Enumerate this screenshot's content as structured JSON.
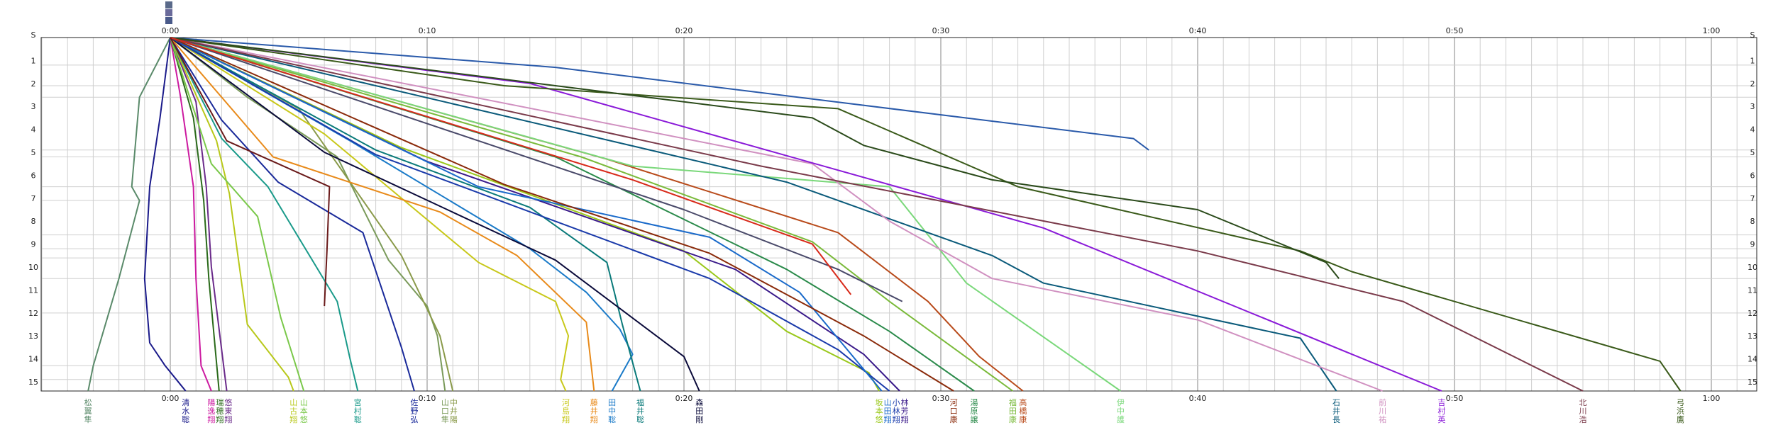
{
  "chart_data": {
    "type": "line",
    "title": "",
    "xlabel": "",
    "ylabel": "",
    "x_unit": "minutes",
    "xlim": [
      0,
      60
    ],
    "x_ticks": [
      {
        "value": 0,
        "label": "0:00"
      },
      {
        "value": 10,
        "label": "0:10"
      },
      {
        "value": 20,
        "label": "0:20"
      },
      {
        "value": 30,
        "label": "0:30"
      },
      {
        "value": 40,
        "label": "0:40"
      },
      {
        "value": 50,
        "label": "0:50"
      },
      {
        "value": 60,
        "label": "1:00"
      }
    ],
    "y_start_label": "S",
    "y_ticks": [
      1,
      2,
      3,
      4,
      5,
      6,
      7,
      8,
      9,
      10,
      11,
      12,
      13,
      14,
      15
    ],
    "y_marks": [
      0,
      1.2,
      2.1,
      2.6,
      4.9,
      5.2,
      6.5,
      7.1,
      8.6,
      9.2,
      9.6,
      10.5,
      12.0,
      14.3,
      14.9,
      15.4
    ],
    "legend": "none",
    "grid": true,
    "series": [
      {
        "name": "松翼隼",
        "color": "#5a8a6a",
        "points": [
          [
            0,
            0
          ],
          [
            -1.2,
            2.6
          ],
          [
            -1.5,
            6.5
          ],
          [
            -1.2,
            7.1
          ],
          [
            -2,
            10.5
          ],
          [
            -3,
            14.3
          ],
          [
            -3.2,
            15.4
          ]
        ]
      },
      {
        "name": "清水聡",
        "color": "#1a1a8a",
        "points": [
          [
            0,
            0
          ],
          [
            -0.4,
            3.5
          ],
          [
            -0.8,
            6.5
          ],
          [
            -1,
            10.5
          ],
          [
            -0.8,
            13.3
          ],
          [
            -0.2,
            14.3
          ],
          [
            0.6,
            15.4
          ]
        ]
      },
      {
        "name": "陽逸翔",
        "color": "#cc1aa0",
        "points": [
          [
            0,
            0
          ],
          [
            0.4,
            2.6
          ],
          [
            0.9,
            6.5
          ],
          [
            1,
            10.5
          ],
          [
            1.2,
            14.3
          ],
          [
            1.6,
            15.4
          ]
        ]
      },
      {
        "name": "瑞穂翔",
        "color": "#2a6a1a",
        "points": [
          [
            0,
            0
          ],
          [
            0.9,
            3.5
          ],
          [
            1.3,
            7.1
          ],
          [
            1.5,
            10.5
          ],
          [
            1.9,
            15.4
          ]
        ]
      },
      {
        "name": "悠東翔",
        "color": "#6a2a8a",
        "points": [
          [
            0,
            0
          ],
          [
            1,
            2.8
          ],
          [
            1.4,
            6.5
          ],
          [
            1.6,
            10
          ],
          [
            2.2,
            15.4
          ]
        ]
      },
      {
        "name": "山古翔",
        "color": "#b8c81a",
        "points": [
          [
            0,
            0
          ],
          [
            1.8,
            4.5
          ],
          [
            2.3,
            6.8
          ],
          [
            3,
            12.5
          ],
          [
            4.6,
            14.8
          ],
          [
            4.8,
            15.4
          ]
        ]
      },
      {
        "name": "山本悠",
        "color": "#7ac84a",
        "points": [
          [
            0,
            0
          ],
          [
            1.6,
            5.5
          ],
          [
            3.4,
            7.8
          ],
          [
            4.3,
            12.2
          ],
          [
            5.2,
            15.4
          ]
        ]
      },
      {
        "name": "宮村聡",
        "color": "#1a9a8a",
        "points": [
          [
            0,
            0
          ],
          [
            2,
            4.4
          ],
          [
            3.8,
            6.5
          ],
          [
            6.5,
            11.5
          ],
          [
            7,
            14
          ],
          [
            7.3,
            15.4
          ]
        ]
      },
      {
        "name": "佐野弘",
        "color": "#1a2a9a",
        "points": [
          [
            0,
            0
          ],
          [
            2,
            3.6
          ],
          [
            4.2,
            6.3
          ],
          [
            7.5,
            8.5
          ],
          [
            9,
            13.5
          ],
          [
            9.5,
            15.4
          ]
        ]
      },
      {
        "name": "山口隼",
        "color": "#7a9a5a",
        "points": [
          [
            0,
            0
          ],
          [
            3,
            2.6
          ],
          [
            6.5,
            5.2
          ],
          [
            8.5,
            9.7
          ],
          [
            10,
            11.7
          ],
          [
            10.4,
            13
          ],
          [
            10.7,
            15.4
          ]
        ]
      },
      {
        "name": "中井陽",
        "color": "#8a9a4a",
        "points": [
          [
            0,
            0
          ],
          [
            5,
            3.1
          ],
          [
            9,
            9.5
          ],
          [
            10.5,
            13
          ],
          [
            11,
            15.4
          ]
        ]
      },
      {
        "name": "河島翔",
        "color": "#c8c81a",
        "points": [
          [
            0,
            0
          ],
          [
            6,
            4.2
          ],
          [
            12,
            9.8
          ],
          [
            15,
            11.5
          ],
          [
            15.5,
            13
          ],
          [
            15.2,
            14.9
          ],
          [
            15.4,
            15.4
          ]
        ]
      },
      {
        "name": "藤井翔",
        "color": "#e88a1a",
        "points": [
          [
            0,
            0
          ],
          [
            4,
            5.2
          ],
          [
            10.5,
            7.6
          ],
          [
            13.5,
            9.5
          ],
          [
            16.2,
            12.4
          ],
          [
            16.5,
            15.4
          ]
        ]
      },
      {
        "name": "田中聡",
        "color": "#1a7ac8",
        "points": [
          [
            0,
            0
          ],
          [
            7,
            4.5
          ],
          [
            14,
            9.2
          ],
          [
            16.2,
            11.1
          ],
          [
            17.5,
            12.7
          ],
          [
            18,
            13.8
          ],
          [
            17.2,
            15.4
          ]
        ]
      },
      {
        "name": "福井聡",
        "color": "#0a7a7a",
        "points": [
          [
            0,
            0
          ],
          [
            8,
            4.9
          ],
          [
            14,
            7.4
          ],
          [
            17,
            9.8
          ],
          [
            17.6,
            12.5
          ],
          [
            18.3,
            15.4
          ]
        ]
      },
      {
        "name": "森田剛",
        "color": "#0a0a3a",
        "points": [
          [
            0,
            0
          ],
          [
            6,
            5
          ],
          [
            15,
            9.7
          ],
          [
            20,
            13.9
          ],
          [
            20.6,
            15.4
          ]
        ]
      },
      {
        "name": "坂本悠",
        "color": "#9ac81a",
        "points": [
          [
            0,
            0
          ],
          [
            9,
            4.8
          ],
          [
            20,
            9.3
          ],
          [
            24,
            12.8
          ],
          [
            27.2,
            14.6
          ],
          [
            27.6,
            15.4
          ]
        ]
      },
      {
        "name": "小林翔",
        "color": "#1a3aaa",
        "points": [
          [
            0,
            0
          ],
          [
            8,
            5.1
          ],
          [
            21,
            10.5
          ],
          [
            26,
            13.6
          ],
          [
            28,
            15.4
          ]
        ]
      },
      {
        "name": "林芳翔",
        "color": "#3a1a8a",
        "points": [
          [
            0,
            0
          ],
          [
            10,
            5.4
          ],
          [
            22,
            10.1
          ],
          [
            27,
            13.8
          ],
          [
            28.4,
            15.4
          ]
        ]
      },
      {
        "name": "山田翔",
        "color": "#1a6aca",
        "points": [
          [
            0,
            0
          ],
          [
            12,
            6.5
          ],
          [
            21,
            8.7
          ],
          [
            24.5,
            11.1
          ],
          [
            27.7,
            15.4
          ]
        ]
      },
      {
        "name": "河口康",
        "color": "#8a2a0a",
        "points": [
          [
            0,
            0
          ],
          [
            13,
            6.4
          ],
          [
            21,
            9.4
          ],
          [
            27,
            13
          ],
          [
            30.5,
            15.4
          ]
        ]
      },
      {
        "name": "湯原譲",
        "color": "#2a8a4a",
        "points": [
          [
            0,
            0
          ],
          [
            15,
            5.2
          ],
          [
            24,
            10.1
          ],
          [
            28,
            12.8
          ],
          [
            31.3,
            15.4
          ]
        ]
      },
      {
        "name": "福田康",
        "color": "#7aba3a",
        "points": [
          [
            0,
            0
          ],
          [
            16,
            5.2
          ],
          [
            25,
            8.9
          ],
          [
            28,
            11.5
          ],
          [
            32.8,
            15.4
          ]
        ]
      },
      {
        "name": "高橋康",
        "color": "#b84a1a",
        "points": [
          [
            0,
            0
          ],
          [
            17,
            5.3
          ],
          [
            26,
            8.5
          ],
          [
            29.5,
            11.5
          ],
          [
            31.5,
            13.9
          ],
          [
            33.2,
            15.4
          ]
        ]
      },
      {
        "name": "伊中護",
        "color": "#7ad87a",
        "points": [
          [
            0,
            0
          ],
          [
            18,
            5.6
          ],
          [
            28,
            6.5
          ],
          [
            31,
            10.7
          ],
          [
            37,
            15.4
          ]
        ]
      },
      {
        "name": "石井長",
        "color": "#0a5a7a",
        "points": [
          [
            0,
            0
          ],
          [
            24,
            6.3
          ],
          [
            32,
            9.5
          ],
          [
            34,
            10.7
          ],
          [
            44,
            13.1
          ],
          [
            45.4,
            15.4
          ]
        ]
      },
      {
        "name": "前川祐",
        "color": "#d090c0",
        "points": [
          [
            0,
            0
          ],
          [
            25,
            5.5
          ],
          [
            28,
            8
          ],
          [
            32,
            10.5
          ],
          [
            40,
            12.3
          ],
          [
            47.2,
            15.4
          ]
        ]
      },
      {
        "name": "吉村英",
        "color": "#8a1ad8",
        "points": [
          [
            0,
            0
          ],
          [
            14,
            2
          ],
          [
            34,
            8.3
          ],
          [
            49.5,
            15.4
          ]
        ]
      },
      {
        "name": "北川浩",
        "color": "#7a3a4a",
        "points": [
          [
            0,
            0
          ],
          [
            23,
            5.6
          ],
          [
            40,
            9.3
          ],
          [
            48,
            11.5
          ],
          [
            55,
            15.4
          ]
        ]
      },
      {
        "name": "弓浜鷹",
        "color": "#3a5a1a",
        "points": [
          [
            0,
            0
          ],
          [
            13,
            2.1
          ],
          [
            26,
            3.1
          ],
          [
            33,
            6.5
          ],
          [
            44,
            9.3
          ],
          [
            46,
            10.2
          ],
          [
            58,
            14.1
          ],
          [
            58.8,
            15.4
          ]
        ]
      },
      {
        "name": "",
        "color": "#2a5aaa",
        "points": [
          [
            0,
            0
          ],
          [
            15,
            1.3
          ],
          [
            37.5,
            4.4
          ],
          [
            38.1,
            4.9
          ]
        ]
      },
      {
        "name": "",
        "color": "#2a4a1a",
        "points": [
          [
            0,
            0
          ],
          [
            25,
            3.5
          ],
          [
            27,
            4.7
          ],
          [
            32,
            6.2
          ],
          [
            40,
            7.5
          ],
          [
            45,
            9.8
          ],
          [
            45.5,
            10.5
          ]
        ]
      },
      {
        "name": "",
        "color": "#4a4a6a",
        "points": [
          [
            0,
            0
          ],
          [
            20,
            7.5
          ],
          [
            26,
            10.1
          ],
          [
            28.5,
            11.5
          ]
        ]
      },
      {
        "name": "",
        "color": "#d82a1a",
        "points": [
          [
            0,
            0
          ],
          [
            18,
            6.2
          ],
          [
            25,
            9
          ],
          [
            26.5,
            11.2
          ]
        ]
      },
      {
        "name": "",
        "color": "#6a1a1a",
        "points": [
          [
            0,
            0
          ],
          [
            2.2,
            4.5
          ],
          [
            6.2,
            6.5
          ],
          [
            6.1,
            9.3
          ],
          [
            6,
            11.7
          ]
        ]
      }
    ]
  }
}
